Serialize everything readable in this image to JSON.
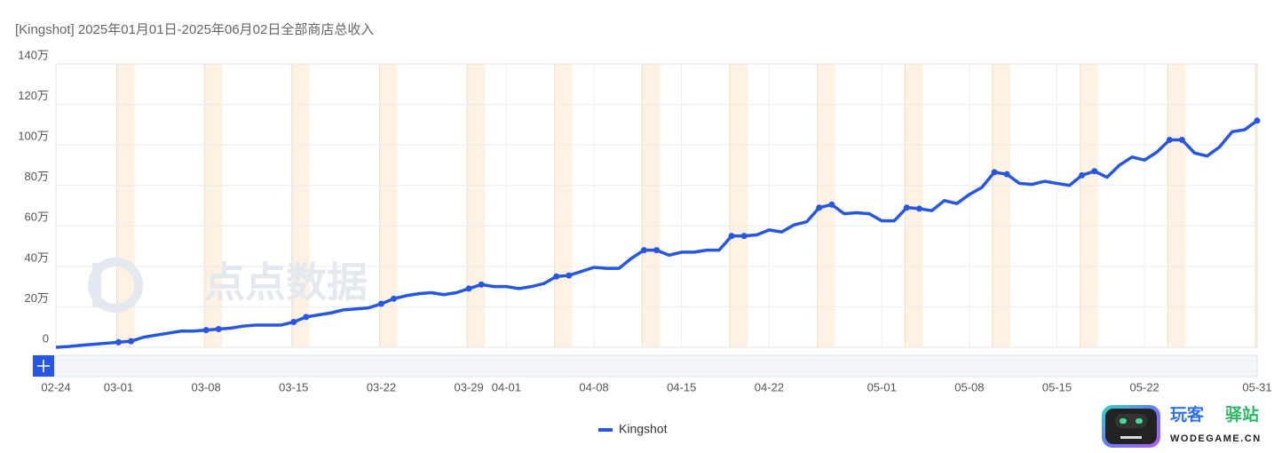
{
  "chart_data": {
    "type": "line",
    "title": "[Kingshot] 2025年01月01日-2025年06月02日全部商店总收入",
    "categories": [
      "02-24",
      null,
      null,
      null,
      null,
      "03-01",
      null,
      null,
      null,
      null,
      null,
      null,
      "03-08",
      null,
      null,
      null,
      null,
      null,
      null,
      "03-15",
      null,
      null,
      null,
      null,
      null,
      null,
      "03-22",
      null,
      null,
      null,
      null,
      null,
      null,
      "03-29",
      null,
      null,
      "04-01",
      null,
      null,
      null,
      null,
      null,
      null,
      "04-08",
      null,
      null,
      null,
      null,
      null,
      null,
      "04-15",
      null,
      null,
      null,
      null,
      null,
      null,
      "04-22",
      null,
      null,
      null,
      null,
      null,
      null,
      null,
      null,
      "05-01",
      null,
      null,
      null,
      null,
      null,
      null,
      "05-08",
      null,
      null,
      null,
      null,
      null,
      null,
      "05-15",
      null,
      null,
      null,
      null,
      null,
      null,
      "05-22",
      null,
      null,
      null,
      null,
      null,
      null,
      null,
      null,
      "05-31"
    ],
    "series": [
      {
        "name": "Kingshot",
        "color": "#2756e0",
        "values": [
          0,
          0.4,
          1,
          1.5,
          2,
          2.5,
          3,
          5,
          6,
          7,
          8,
          8,
          8.5,
          9,
          9.5,
          10.5,
          11,
          11,
          11,
          12.5,
          15,
          16,
          17,
          18.5,
          19,
          19.5,
          21.5,
          24,
          25.5,
          26.5,
          27,
          26,
          27,
          29,
          31,
          30,
          30,
          29,
          30,
          31.5,
          35,
          35.5,
          37.5,
          39.5,
          39,
          39,
          44,
          48,
          48,
          45.5,
          47,
          47,
          48,
          48,
          55,
          55,
          55.5,
          58,
          57,
          60.5,
          62,
          69,
          70.5,
          66,
          66.5,
          66,
          62.5,
          62.5,
          69,
          68.5,
          67.5,
          72.5,
          71,
          75.5,
          79,
          86.5,
          85.5,
          81,
          80.5,
          82,
          81,
          80,
          85,
          87,
          84,
          90,
          94,
          92.5,
          96.5,
          102.5,
          102.5,
          96,
          94.5,
          99,
          106.5,
          107.5,
          112
        ]
      }
    ],
    "highlight_index": [
      5,
      12,
      19,
      26,
      33,
      40,
      47,
      54,
      61,
      68,
      75,
      82,
      89,
      96
    ],
    "ylim": [
      0,
      140
    ],
    "yticks": [
      0,
      {
        "value": 20,
        "label": "20万"
      },
      {
        "value": 40,
        "label": "40万"
      },
      {
        "value": 60,
        "label": "60万"
      },
      {
        "value": 80,
        "label": "80万"
      },
      {
        "value": 100,
        "label": "100万"
      },
      {
        "value": 120,
        "label": "120万"
      },
      {
        "value": 140,
        "label": "140万"
      }
    ],
    "grid": true,
    "watermark": "点点数据",
    "logo": {
      "cn1": "玩客",
      "cn2": "驿站",
      "en": "WODEGAME.CN"
    }
  }
}
